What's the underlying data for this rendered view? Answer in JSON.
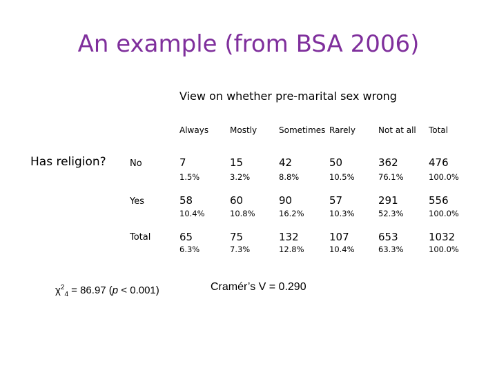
{
  "slide": {
    "title": "An example (from BSA 2006)",
    "subtitle": "View on whether pre-marital sex wrong",
    "row_group_label": "Has religion?"
  },
  "table": {
    "columns": [
      "Always",
      "Mostly",
      "Sometimes",
      "Rarely",
      "Not at all",
      "Total"
    ],
    "rows": [
      {
        "label": "No",
        "counts": [
          "7",
          "15",
          "42",
          "50",
          "362",
          "476"
        ],
        "percents": [
          "1.5%",
          "3.2%",
          "8.8%",
          "10.5%",
          "76.1%",
          "100.0%"
        ]
      },
      {
        "label": "Yes",
        "counts": [
          "58",
          "60",
          "90",
          "57",
          "291",
          "556"
        ],
        "percents": [
          "10.4%",
          "10.8%",
          "16.2%",
          "10.3%",
          "52.3%",
          "100.0%"
        ]
      },
      {
        "label": "Total",
        "counts": [
          "65",
          "75",
          "132",
          "107",
          "653",
          "1032"
        ],
        "percents": [
          "6.3%",
          "7.3%",
          "12.8%",
          "10.4%",
          "63.3%",
          "100.0%"
        ]
      }
    ]
  },
  "stats": {
    "chi_symbol": "χ",
    "chi_sup": "2",
    "chi_sub": "4",
    "chi_value": " = 86.97 (",
    "p_symbol": "p",
    "p_value": " < 0.001)",
    "cramer": "Cramér’s V = 0.290"
  }
}
